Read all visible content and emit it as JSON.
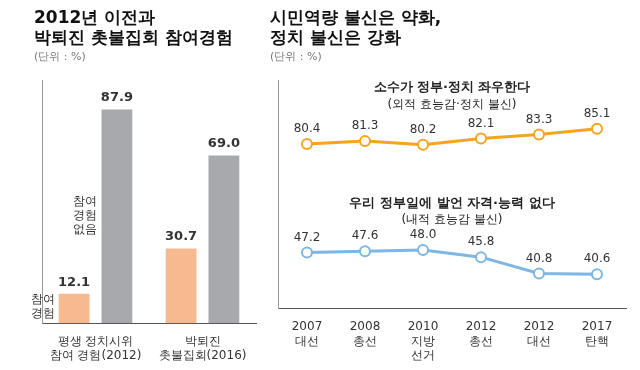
{
  "chart_data": [
    {
      "type": "bar",
      "title": [
        "2012년 이전과",
        "박퇴진 촛불집회 참여경험"
      ],
      "subtitle": "(단위 : %)",
      "categories": [
        [
          "평생 정치시위",
          "참여 경험(2012)"
        ],
        [
          "박퇴진",
          "촛불집회(2016)"
        ]
      ],
      "series": [
        {
          "name": "참여 경험",
          "color": "#f7b98f",
          "values": [
            12.1,
            30.7
          ],
          "value_labels": [
            "12.1",
            "30.7"
          ]
        },
        {
          "name": "참여 경험 없음",
          "color": "#a7a9ac",
          "values": [
            87.9,
            69.0
          ],
          "value_labels": [
            "87.9",
            "69.0"
          ]
        }
      ],
      "ylim": [
        0,
        100
      ],
      "grid": false,
      "data_labels": true,
      "tick_labels": "x"
    },
    {
      "type": "line",
      "title": [
        "시민역량 불신은 약화,",
        "정치 불신은 강화"
      ],
      "subtitle": "(단위 : %)",
      "categories": [
        [
          "2007",
          "대선"
        ],
        [
          "2008",
          "총선"
        ],
        [
          "2010",
          "지방",
          "선거"
        ],
        [
          "2012",
          "총선"
        ],
        [
          "2012",
          "대선"
        ],
        [
          "2017",
          "탄핵"
        ]
      ],
      "series": [
        {
          "name": "소수가 정부·정치 좌우한다",
          "annotation": "(외적 효능감·정치 불신)",
          "color": "#f5a41d",
          "marker": "circle",
          "values": [
            80.4,
            81.3,
            80.2,
            82.1,
            83.3,
            85.1
          ],
          "value_labels": [
            "80.4",
            "81.3",
            "80.2",
            "82.1",
            "83.3",
            "85.1"
          ]
        },
        {
          "name": "우리 정부일에 발언 자격·능력 없다",
          "annotation": "(내적 효능감 불신)",
          "color": "#7eb6e4",
          "marker": "circle",
          "values": [
            47.2,
            47.6,
            48.0,
            45.8,
            40.8,
            40.6
          ],
          "value_labels": [
            "47.2",
            "47.6",
            "48.0",
            "45.8",
            "40.8",
            "40.6"
          ]
        }
      ],
      "ylim": [
        30,
        100
      ],
      "grid": false,
      "data_labels": true,
      "tick_labels": "x"
    }
  ]
}
